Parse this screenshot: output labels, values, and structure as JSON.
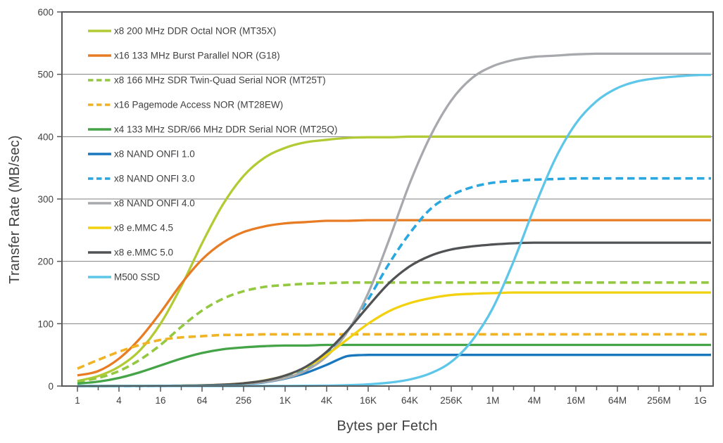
{
  "chart_data": {
    "type": "line",
    "title": "",
    "xlabel": "Bytes per Fetch",
    "ylabel": "Transfer Rate (MB/sec)",
    "x_scale": "log2",
    "x_unit": "bytes",
    "x_tick_labels": [
      "1",
      "4",
      "16",
      "64",
      "256",
      "1K",
      "4K",
      "16K",
      "64K",
      "256K",
      "1M",
      "4M",
      "16M",
      "64M",
      "256M",
      "1G"
    ],
    "x_points_log2": [
      0,
      1,
      2,
      3,
      4,
      5,
      6,
      7,
      8,
      9,
      10,
      11,
      12,
      13,
      14,
      15,
      16,
      17,
      18,
      19,
      20,
      21,
      22,
      23,
      24,
      25,
      26,
      27,
      28,
      29,
      30
    ],
    "ylim": [
      0,
      600
    ],
    "y_ticks": [
      0,
      100,
      200,
      300,
      400,
      500,
      600
    ],
    "grid": "horizontal",
    "legend_position": "top-left-inside",
    "series": [
      {
        "name": "x8 200 MHz DDR Octal NOR (MT35X)",
        "slug": "mt35x-octal-ddr-nor",
        "color": "#b2cb34",
        "style": "solid",
        "saturation_mb_per_sec": 400,
        "values": [
          8,
          16,
          31,
          57,
          100,
          160,
          229,
          291,
          337,
          366,
          382,
          391,
          395,
          398,
          399,
          399,
          400,
          400,
          400,
          400,
          400,
          400,
          400,
          400,
          400,
          400,
          400,
          400,
          400,
          400,
          400
        ]
      },
      {
        "name": "x16 133 MHz Burst Parallel NOR (G18)",
        "slug": "g18-burst-parallel-nor",
        "color": "#e87c24",
        "style": "solid",
        "saturation_mb_per_sec": 266,
        "values": [
          17,
          24,
          44,
          76,
          118,
          164,
          203,
          230,
          247,
          256,
          261,
          263,
          265,
          265,
          266,
          266,
          266,
          266,
          266,
          266,
          266,
          266,
          266,
          266,
          266,
          266,
          266,
          266,
          266,
          266,
          266
        ]
      },
      {
        "name": "x8 166 MHz SDR Twin-Quad Serial NOR (MT25T)",
        "slug": "mt25t-twin-quad-serial-nor",
        "color": "#94c840",
        "style": "dashed",
        "saturation_mb_per_sec": 166,
        "values": [
          7,
          13,
          24,
          42,
          66,
          95,
          121,
          140,
          152,
          159,
          162,
          164,
          165,
          166,
          166,
          166,
          166,
          166,
          166,
          166,
          166,
          166,
          166,
          166,
          166,
          166,
          166,
          166,
          166,
          166,
          166
        ]
      },
      {
        "name": "x16 Pagemode Access  NOR (MT28EW)",
        "slug": "mt28ew-pagemode-nor",
        "color": "#f0b323",
        "style": "dashed",
        "saturation_mb_per_sec": 83,
        "values": [
          28,
          42,
          55,
          66,
          74,
          78,
          80,
          82,
          82,
          83,
          83,
          83,
          83,
          83,
          83,
          83,
          83,
          83,
          83,
          83,
          83,
          83,
          83,
          83,
          83,
          83,
          83,
          83,
          83,
          83,
          83
        ]
      },
      {
        "name": "x4 133 MHz SDR/66 MHz DDR Serial NOR (MT25Q)",
        "slug": "mt25q-serial-nor",
        "color": "#44a447",
        "style": "solid",
        "saturation_mb_per_sec": 66,
        "values": [
          4,
          7,
          13,
          22,
          33,
          44,
          53,
          59,
          62,
          64,
          65,
          65,
          66,
          66,
          66,
          66,
          66,
          66,
          66,
          66,
          66,
          66,
          66,
          66,
          66,
          66,
          66,
          66,
          66,
          66,
          66
        ]
      },
      {
        "name": "x8 NAND ONFI 1.0",
        "slug": "nand-onfi-1-0",
        "color": "#1877bd",
        "style": "solid",
        "saturation_mb_per_sec": 50,
        "values": [
          0,
          0,
          0.1,
          0.1,
          0.2,
          0.4,
          0.8,
          1.5,
          3,
          6,
          12,
          21,
          34,
          48,
          50,
          50,
          50,
          50,
          50,
          50,
          50,
          50,
          50,
          50,
          50,
          50,
          50,
          50,
          50,
          50,
          50
        ]
      },
      {
        "name": "x8 NAND ONFI 3.0",
        "slug": "nand-onfi-3-0",
        "color": "#29a7e0",
        "style": "dashed",
        "saturation_mb_per_sec": 333,
        "values": [
          0,
          0,
          0.1,
          0.1,
          0.2,
          0.5,
          0.9,
          1.8,
          3.7,
          7.2,
          14,
          27,
          50,
          88,
          139,
          196,
          245,
          284,
          306,
          319,
          326,
          329,
          331,
          332,
          333,
          333,
          333,
          333,
          333,
          333,
          333
        ]
      },
      {
        "name": "x8 NAND ONFI 4.0",
        "slug": "nand-onfi-4-0",
        "color": "#a7a9ac",
        "style": "solid",
        "saturation_mb_per_sec": 533,
        "values": [
          0,
          0,
          0.1,
          0.1,
          0.2,
          0.4,
          0.8,
          1.6,
          3.2,
          6.4,
          12.6,
          24.7,
          47.6,
          87,
          149,
          234,
          325,
          401,
          458,
          494,
          513,
          523,
          528,
          530,
          532,
          533,
          533,
          533,
          533,
          533,
          533
        ]
      },
      {
        "name": "x8 e.MMC 4.5",
        "slug": "emmc-4-5",
        "color": "#f2d10e",
        "style": "solid",
        "saturation_mb_per_sec": 150,
        "values": [
          0,
          0,
          0.1,
          0.1,
          0.3,
          0.6,
          1.2,
          2.3,
          4.5,
          8.9,
          16.7,
          30,
          50,
          75,
          100,
          120,
          133,
          141,
          146,
          148,
          149,
          150,
          150,
          150,
          150,
          150,
          150,
          150,
          150,
          150,
          150
        ]
      },
      {
        "name": "x8 e.MMC 5.0",
        "slug": "emmc-5-0",
        "color": "#515254",
        "style": "solid",
        "saturation_mb_per_sec": 230,
        "values": [
          0,
          0,
          0.1,
          0.1,
          0.3,
          0.6,
          1.1,
          2.2,
          4.4,
          8.7,
          16.8,
          31,
          55,
          89,
          128,
          165,
          192,
          209,
          219,
          224,
          227,
          229,
          230,
          230,
          230,
          230,
          230,
          230,
          230,
          230,
          230
        ]
      },
      {
        "name": "M500 SSD",
        "slug": "m500-ssd",
        "color": "#5dc6e9",
        "style": "solid",
        "saturation_mb_per_sec": 500,
        "values": [
          0,
          0,
          0,
          0,
          0,
          0,
          0,
          0,
          0.1,
          0.1,
          0.1,
          0.3,
          0.7,
          1.4,
          2.7,
          5.4,
          10.5,
          20.4,
          38.8,
          72.8,
          125,
          200,
          286,
          364,
          421,
          457,
          478,
          489,
          494,
          497,
          499
        ]
      }
    ]
  },
  "colors": {
    "axis_border": "#58595b",
    "gridline": "#7f7f7f",
    "text": "#414042",
    "background": "#ffffff"
  }
}
